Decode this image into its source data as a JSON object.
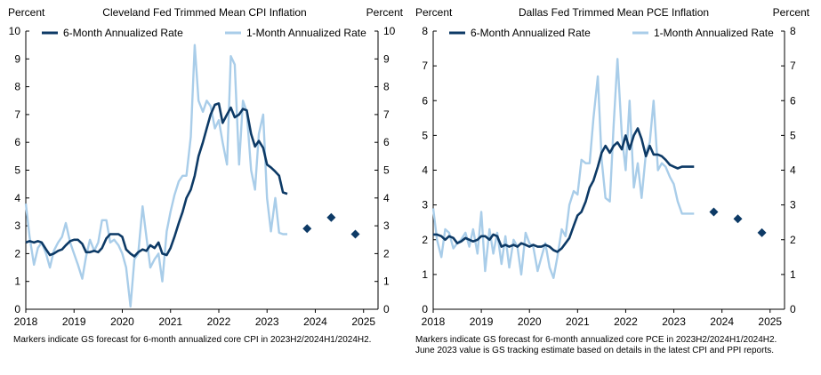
{
  "colors": {
    "six_month": "#0d3a66",
    "one_month": "#a9cde9",
    "forecast": "#0d3a66",
    "axis": "#000000"
  },
  "chart_data": [
    {
      "type": "line",
      "title": "Cleveland  Fed Trimmed  Mean CPI Inflation",
      "ylabel_left": "Percent",
      "ylabel_right": "Percent",
      "ylim": [
        0,
        10
      ],
      "yticks": [
        "0",
        "1",
        "2",
        "3",
        "4",
        "5",
        "6",
        "7",
        "8",
        "9",
        "10"
      ],
      "xlim": [
        2018.0,
        2025.3
      ],
      "xticks": [
        "2018",
        "2019",
        "2020",
        "2021",
        "2022",
        "2023",
        "2024",
        "2025"
      ],
      "legend": [
        "6-Month Annualized Rate",
        "1-Month Annualized Rate"
      ],
      "series": [
        {
          "name": "6-Month Annualized Rate",
          "x": [
            2018.0,
            2018.08,
            2018.17,
            2018.25,
            2018.33,
            2018.42,
            2018.5,
            2018.58,
            2018.67,
            2018.75,
            2018.83,
            2018.92,
            2019.0,
            2019.08,
            2019.17,
            2019.25,
            2019.33,
            2019.42,
            2019.5,
            2019.58,
            2019.67,
            2019.75,
            2019.83,
            2019.92,
            2020.0,
            2020.08,
            2020.17,
            2020.25,
            2020.33,
            2020.42,
            2020.5,
            2020.58,
            2020.67,
            2020.75,
            2020.83,
            2020.92,
            2021.0,
            2021.08,
            2021.17,
            2021.25,
            2021.33,
            2021.42,
            2021.5,
            2021.58,
            2021.67,
            2021.75,
            2021.83,
            2021.92,
            2022.0,
            2022.08,
            2022.17,
            2022.25,
            2022.33,
            2022.42,
            2022.5,
            2022.58,
            2022.67,
            2022.75,
            2022.83,
            2022.92,
            2023.0,
            2023.08,
            2023.17,
            2023.25,
            2023.33,
            2023.42
          ],
          "values": [
            2.4,
            2.45,
            2.4,
            2.45,
            2.4,
            2.15,
            1.95,
            2.0,
            2.1,
            2.15,
            2.3,
            2.45,
            2.5,
            2.5,
            2.35,
            2.05,
            2.05,
            2.1,
            2.05,
            2.2,
            2.55,
            2.7,
            2.7,
            2.7,
            2.6,
            2.15,
            2.0,
            1.9,
            2.05,
            2.15,
            2.1,
            2.3,
            2.2,
            2.4,
            2.0,
            1.95,
            2.2,
            2.6,
            3.1,
            3.5,
            4.0,
            4.3,
            4.8,
            5.5,
            6.0,
            6.5,
            7.0,
            7.35,
            7.4,
            6.7,
            7.0,
            7.25,
            6.9,
            7.0,
            7.2,
            7.15,
            6.3,
            5.85,
            6.05,
            5.8,
            5.2,
            5.1,
            4.95,
            4.8,
            4.2,
            4.15
          ]
        },
        {
          "name": "1-Month Annualized Rate",
          "x": [
            2018.0,
            2018.08,
            2018.17,
            2018.25,
            2018.33,
            2018.42,
            2018.5,
            2018.58,
            2018.67,
            2018.75,
            2018.83,
            2018.92,
            2019.0,
            2019.08,
            2019.17,
            2019.25,
            2019.33,
            2019.42,
            2019.5,
            2019.58,
            2019.67,
            2019.75,
            2019.83,
            2019.92,
            2020.0,
            2020.08,
            2020.17,
            2020.25,
            2020.33,
            2020.42,
            2020.5,
            2020.58,
            2020.67,
            2020.75,
            2020.83,
            2020.92,
            2021.0,
            2021.08,
            2021.17,
            2021.25,
            2021.33,
            2021.42,
            2021.5,
            2021.58,
            2021.67,
            2021.75,
            2021.83,
            2021.92,
            2022.0,
            2022.08,
            2022.17,
            2022.25,
            2022.33,
            2022.42,
            2022.5,
            2022.58,
            2022.67,
            2022.75,
            2022.83,
            2022.92,
            2023.0,
            2023.08,
            2023.17,
            2023.25,
            2023.33,
            2023.42
          ],
          "values": [
            3.8,
            2.6,
            1.6,
            2.2,
            2.4,
            2.0,
            1.5,
            2.1,
            2.4,
            2.6,
            3.1,
            2.4,
            2.0,
            1.6,
            1.1,
            1.9,
            2.5,
            2.1,
            2.4,
            3.2,
            3.2,
            2.4,
            2.5,
            2.3,
            2.0,
            1.5,
            0.1,
            1.8,
            2.0,
            3.7,
            2.6,
            1.5,
            1.8,
            2.0,
            1.0,
            2.8,
            3.5,
            4.1,
            4.6,
            4.8,
            4.8,
            6.2,
            9.5,
            7.5,
            7.1,
            7.5,
            7.3,
            6.5,
            6.8,
            6.0,
            5.2,
            9.1,
            8.8,
            5.2,
            7.5,
            7.1,
            5.0,
            4.3,
            6.3,
            7.0,
            4.0,
            2.8,
            4.0,
            2.75,
            2.7,
            2.7
          ]
        }
      ],
      "forecast": {
        "x": [
          2023.83,
          2024.33,
          2024.83
        ],
        "values": [
          2.9,
          3.3,
          2.7
        ]
      },
      "note": "Markers indicate GS  forecast for 6-month annualized core CPI  in 2023H2/2024H1/2024H2."
    },
    {
      "type": "line",
      "title": "Dallas Fed Trimmed  Mean PCE Inflation",
      "ylabel_left": "Percent",
      "ylabel_right": "Percent",
      "ylim": [
        0,
        8
      ],
      "yticks": [
        "0",
        "1",
        "2",
        "3",
        "4",
        "5",
        "6",
        "7",
        "8"
      ],
      "xlim": [
        2018.0,
        2025.3
      ],
      "xticks": [
        "2018",
        "2019",
        "2020",
        "2021",
        "2022",
        "2023",
        "2024",
        "2025"
      ],
      "legend": [
        "6-Month Annualized Rate",
        "1-Month Annualized Rate"
      ],
      "series": [
        {
          "name": "6-Month Annualized Rate",
          "x": [
            2018.0,
            2018.08,
            2018.17,
            2018.25,
            2018.33,
            2018.42,
            2018.5,
            2018.58,
            2018.67,
            2018.75,
            2018.83,
            2018.92,
            2019.0,
            2019.08,
            2019.17,
            2019.25,
            2019.33,
            2019.42,
            2019.5,
            2019.58,
            2019.67,
            2019.75,
            2019.83,
            2019.92,
            2020.0,
            2020.08,
            2020.17,
            2020.25,
            2020.33,
            2020.42,
            2020.5,
            2020.58,
            2020.67,
            2020.75,
            2020.83,
            2020.92,
            2021.0,
            2021.08,
            2021.17,
            2021.25,
            2021.33,
            2021.42,
            2021.5,
            2021.58,
            2021.67,
            2021.75,
            2021.83,
            2021.92,
            2022.0,
            2022.08,
            2022.17,
            2022.25,
            2022.33,
            2022.42,
            2022.5,
            2022.58,
            2022.67,
            2022.75,
            2022.83,
            2022.92,
            2023.0,
            2023.08,
            2023.17,
            2023.25,
            2023.33,
            2023.42
          ],
          "values": [
            2.15,
            2.15,
            2.1,
            2.0,
            2.1,
            2.05,
            1.9,
            1.95,
            2.05,
            2.0,
            1.95,
            2.0,
            2.1,
            2.1,
            2.0,
            2.15,
            2.1,
            1.8,
            1.85,
            1.8,
            1.85,
            1.8,
            1.9,
            1.85,
            1.8,
            1.85,
            1.8,
            1.8,
            1.85,
            1.8,
            1.7,
            1.65,
            1.75,
            1.9,
            2.05,
            2.4,
            2.7,
            2.8,
            3.1,
            3.5,
            3.7,
            4.1,
            4.5,
            4.7,
            4.5,
            4.7,
            4.8,
            4.6,
            5.0,
            4.6,
            5.0,
            5.2,
            4.9,
            4.4,
            4.7,
            4.45,
            4.45,
            4.4,
            4.3,
            4.15,
            4.1,
            4.05,
            4.1,
            4.1,
            4.1,
            4.1
          ],
          "cutoff": 62
        },
        {
          "name": "1-Month Annualized Rate",
          "x": [
            2018.0,
            2018.08,
            2018.17,
            2018.25,
            2018.33,
            2018.42,
            2018.5,
            2018.58,
            2018.67,
            2018.75,
            2018.83,
            2018.92,
            2019.0,
            2019.08,
            2019.17,
            2019.25,
            2019.33,
            2019.42,
            2019.5,
            2019.58,
            2019.67,
            2019.75,
            2019.83,
            2019.92,
            2020.0,
            2020.08,
            2020.17,
            2020.25,
            2020.33,
            2020.42,
            2020.5,
            2020.58,
            2020.67,
            2020.75,
            2020.83,
            2020.92,
            2021.0,
            2021.08,
            2021.17,
            2021.25,
            2021.33,
            2021.42,
            2021.5,
            2021.58,
            2021.67,
            2021.75,
            2021.83,
            2021.92,
            2022.0,
            2022.08,
            2022.17,
            2022.25,
            2022.33,
            2022.42,
            2022.5,
            2022.58,
            2022.67,
            2022.75,
            2022.83,
            2022.92,
            2023.0,
            2023.08,
            2023.17,
            2023.25,
            2023.33,
            2023.42
          ],
          "values": [
            2.9,
            2.0,
            1.5,
            2.3,
            2.2,
            1.75,
            1.9,
            2.0,
            2.2,
            1.8,
            2.3,
            1.6,
            2.8,
            1.1,
            2.3,
            1.6,
            2.2,
            1.3,
            2.1,
            1.2,
            2.0,
            1.8,
            1.0,
            2.2,
            1.9,
            1.8,
            1.1,
            1.5,
            1.9,
            1.2,
            0.9,
            1.5,
            2.3,
            2.1,
            3.0,
            3.4,
            3.3,
            4.3,
            4.2,
            4.2,
            5.5,
            6.7,
            4.3,
            3.2,
            3.1,
            5.3,
            7.2,
            5.0,
            4.0,
            6.0,
            3.5,
            4.2,
            3.2,
            4.5,
            4.8,
            6.0,
            4.0,
            4.2,
            4.1,
            3.8,
            3.6,
            3.1,
            2.75,
            2.75,
            2.75,
            2.75
          ],
          "cutoff": 63
        }
      ],
      "forecast": {
        "x": [
          2023.83,
          2024.33,
          2024.83
        ],
        "values": [
          2.8,
          2.6,
          2.2
        ]
      },
      "note": "Markers indicate GS  forecast for 6-month annualized core PCE  in 2023H2/2024H1/2024H2.",
      "note2": "June 2023 value is GS tracking estimate based on details in the latest CPI  and PPI  reports."
    }
  ]
}
